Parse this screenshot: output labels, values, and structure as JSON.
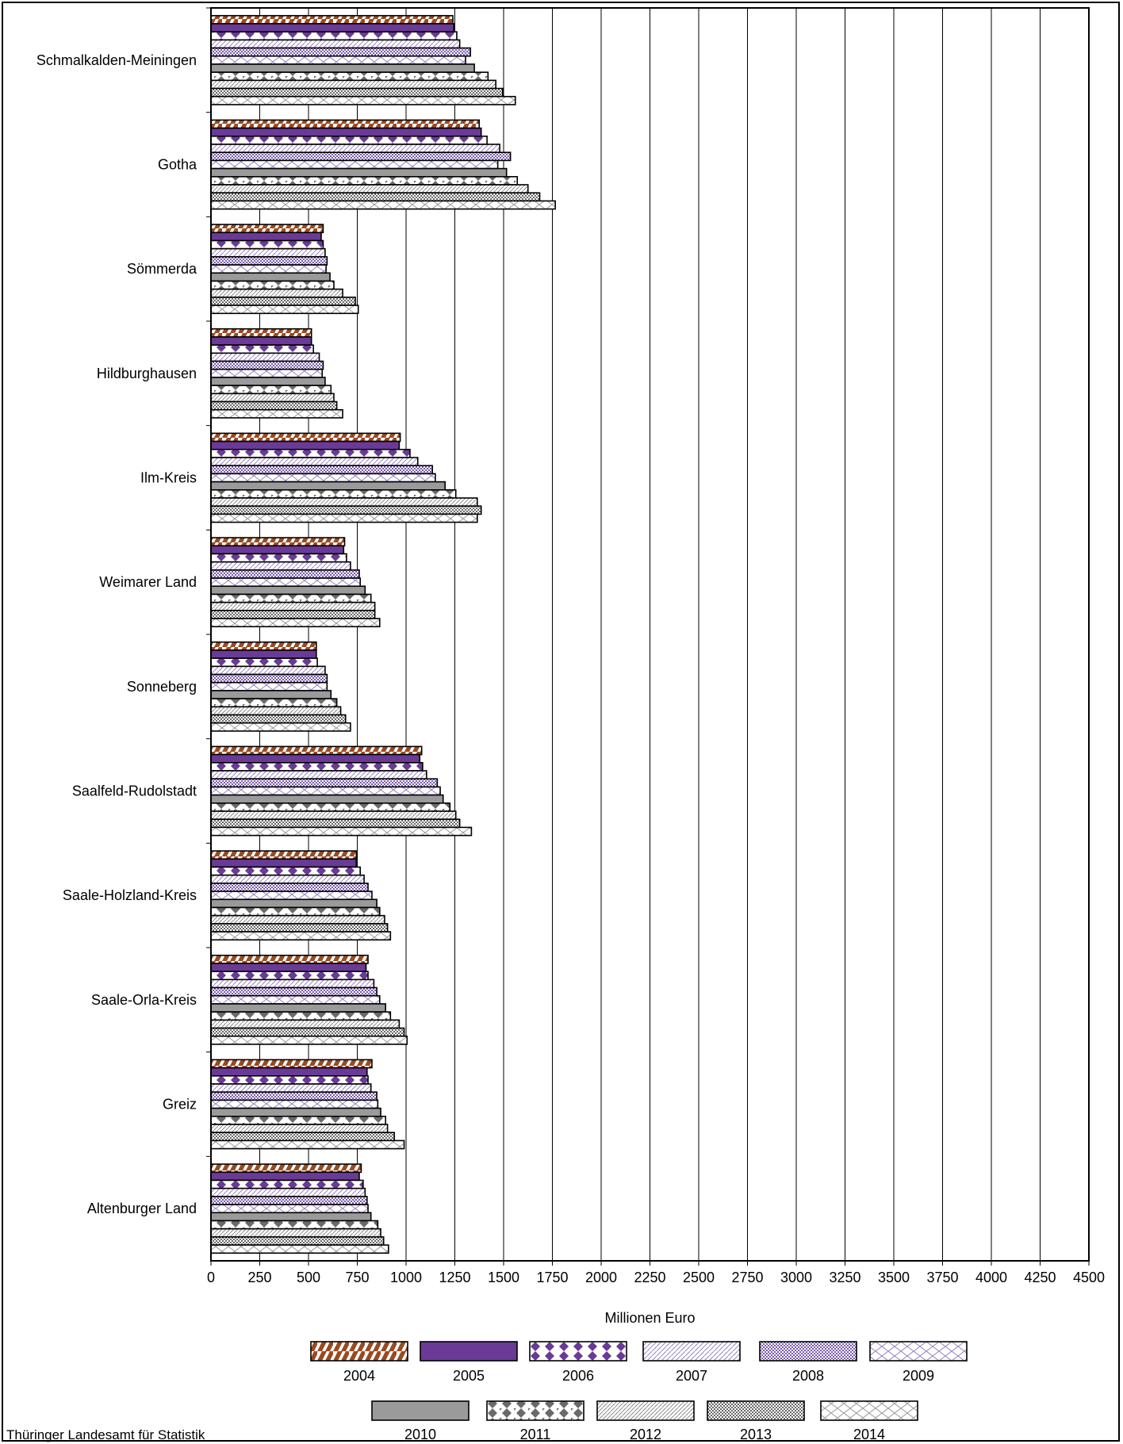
{
  "chart_data": {
    "type": "bar",
    "orientation": "horizontal",
    "title": "",
    "xlabel": "Millionen Euro",
    "ylabel": "",
    "xlim": [
      0,
      4500
    ],
    "x_ticks": [
      "0",
      "250",
      "500",
      "750",
      "1000",
      "1250",
      "1500",
      "1750",
      "2000",
      "2250",
      "2500",
      "2750",
      "3000",
      "3250",
      "3500",
      "3750",
      "4000",
      "4250",
      "4500"
    ],
    "grid": "vertical",
    "legend_position": "bottom",
    "categories": [
      "Schmalkalden-Meiningen",
      "Gotha",
      "Sömmerda",
      "Hildburghausen",
      "Ilm-Kreis",
      "Weimarer Land",
      "Sonneberg",
      "Saalfeld-Rudolstadt",
      "Saale-Holzland-Kreis",
      "Saale-Orla-Kreis",
      "Greiz",
      "Altenburger Land"
    ],
    "series": [
      {
        "name": "2004",
        "values": [
          1240,
          1375,
          575,
          515,
          970,
          685,
          540,
          1080,
          745,
          805,
          825,
          770
        ]
      },
      {
        "name": "2005",
        "values": [
          1245,
          1385,
          565,
          515,
          965,
          680,
          540,
          1070,
          745,
          795,
          800,
          760
        ]
      },
      {
        "name": "2006",
        "values": [
          1260,
          1415,
          575,
          525,
          1020,
          695,
          545,
          1085,
          765,
          805,
          805,
          780
        ]
      },
      {
        "name": "2007",
        "values": [
          1275,
          1480,
          585,
          555,
          1060,
          715,
          585,
          1105,
          785,
          835,
          820,
          790
        ]
      },
      {
        "name": "2008",
        "values": [
          1330,
          1535,
          595,
          575,
          1135,
          760,
          595,
          1160,
          805,
          850,
          850,
          800
        ]
      },
      {
        "name": "2009",
        "values": [
          1305,
          1470,
          590,
          570,
          1150,
          765,
          595,
          1175,
          825,
          865,
          855,
          805
        ]
      },
      {
        "name": "2010",
        "values": [
          1350,
          1515,
          610,
          585,
          1200,
          790,
          615,
          1190,
          850,
          895,
          870,
          820
        ]
      },
      {
        "name": "2011",
        "values": [
          1420,
          1570,
          630,
          615,
          1255,
          820,
          645,
          1225,
          865,
          920,
          895,
          855
        ]
      },
      {
        "name": "2012",
        "values": [
          1460,
          1625,
          675,
          630,
          1365,
          840,
          665,
          1255,
          890,
          965,
          905,
          870
        ]
      },
      {
        "name": "2013",
        "values": [
          1495,
          1685,
          740,
          645,
          1385,
          840,
          690,
          1275,
          905,
          990,
          940,
          885
        ]
      },
      {
        "name": "2014",
        "values": [
          1560,
          1765,
          755,
          675,
          1365,
          865,
          715,
          1335,
          920,
          1005,
          990,
          910
        ]
      }
    ],
    "colors": {
      "accent_brown": "#9a4a20",
      "accent_purple": "#6a3a96",
      "light_purple": "#9a82c4",
      "gray": "#9a9a9a",
      "dark_gray": "#6a6a6a",
      "grid": "#000000"
    }
  },
  "footer": {
    "source": "Thüringer Landesamt für Statistik"
  }
}
